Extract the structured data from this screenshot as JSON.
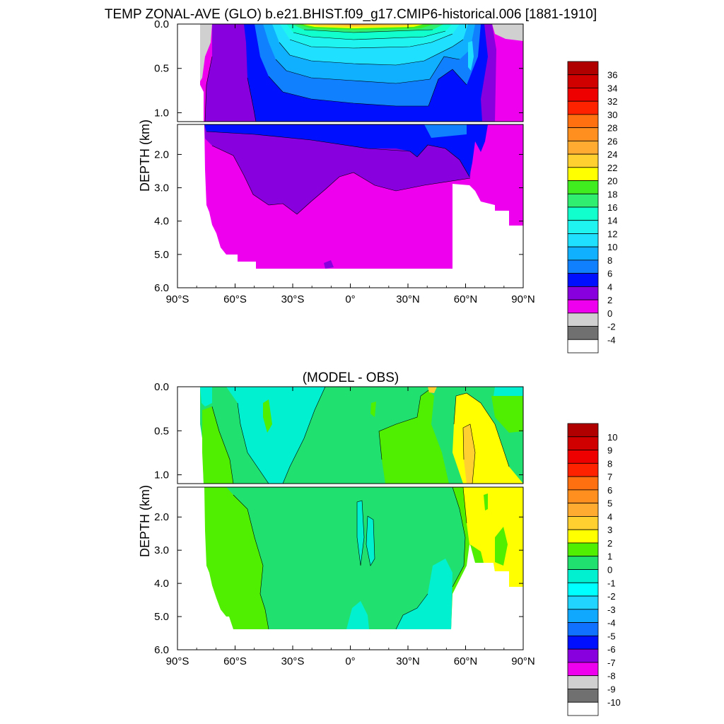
{
  "page": {
    "title": "TEMP ZONAL-AVE (GLO) b.e21.BHIST.f09_g17.CMIP6-historical.006 [1881-1910]"
  },
  "chart_data": [
    {
      "type": "heatmap",
      "title": "TEMP ZONAL-AVE (GLO) b.e21.BHIST.f09_g17.CMIP6-historical.006 [1881-1910]",
      "ylabel": "DEPTH (km)",
      "xlabel": "",
      "x_ticks": [
        "90°S",
        "60°S",
        "30°S",
        "0°",
        "30°N",
        "60°N",
        "90°N"
      ],
      "x_tick_values": [
        -90,
        -60,
        -30,
        0,
        30,
        60,
        90
      ],
      "y_ticks_upper": [
        "0.0",
        "0.5",
        "1.0"
      ],
      "y_ticks_upper_values": [
        0,
        0.5,
        1.0
      ],
      "y_ticks_lower": [
        "2.0",
        "3.0",
        "4.0",
        "5.0",
        "6.0"
      ],
      "y_ticks_lower_values": [
        2,
        3,
        4,
        5,
        6
      ],
      "xlim": [
        -90,
        90
      ],
      "ylim_upper": [
        0,
        1.1
      ],
      "ylim_lower": [
        1.1,
        6.0
      ],
      "colorbar_labels": [
        "36",
        "34",
        "32",
        "30",
        "28",
        "26",
        "24",
        "22",
        "20",
        "18",
        "16",
        "14",
        "12",
        "10",
        "8",
        "6",
        "4",
        "2",
        "0",
        "-2",
        "-4"
      ],
      "colorbar_levels": [
        36,
        34,
        32,
        30,
        28,
        26,
        24,
        22,
        20,
        18,
        16,
        14,
        12,
        10,
        8,
        6,
        4,
        2,
        0,
        -2,
        -4
      ],
      "colorbar_colors": [
        "#b00000",
        "#d00000",
        "#ee0000",
        "#ff2200",
        "#ff7010",
        "#ff9020",
        "#ffaa30",
        "#ffd030",
        "#ffff00",
        "#40ee20",
        "#30ee70",
        "#10ffcc",
        "#20f4f0",
        "#20e0ff",
        "#10b0ff",
        "#1080ff",
        "#0010ff",
        "#8800dd",
        "#ee00ee",
        "#d0d0d0",
        "#707070",
        "#ffffff"
      ]
    },
    {
      "type": "heatmap",
      "title": "(MODEL - OBS)",
      "ylabel": "DEPTH (km)",
      "xlabel": "",
      "x_ticks": [
        "90°S",
        "60°S",
        "30°S",
        "0°",
        "30°N",
        "60°N",
        "90°N"
      ],
      "x_tick_values": [
        -90,
        -60,
        -30,
        0,
        30,
        60,
        90
      ],
      "y_ticks_upper": [
        "0.0",
        "0.5",
        "1.0"
      ],
      "y_ticks_upper_values": [
        0,
        0.5,
        1.0
      ],
      "y_ticks_lower": [
        "2.0",
        "3.0",
        "4.0",
        "5.0",
        "6.0"
      ],
      "y_ticks_lower_values": [
        2,
        3,
        4,
        5,
        6
      ],
      "xlim": [
        -90,
        90
      ],
      "ylim_upper": [
        0,
        1.1
      ],
      "ylim_lower": [
        1.1,
        6.0
      ],
      "colorbar_labels": [
        "10",
        "9",
        "8",
        "7",
        "6",
        "5",
        "4",
        "3",
        "2",
        "1",
        "0",
        "-1",
        "-2",
        "-3",
        "-4",
        "-5",
        "-6",
        "-7",
        "-8",
        "-9",
        "-10"
      ],
      "colorbar_levels": [
        10,
        9,
        8,
        7,
        6,
        5,
        4,
        3,
        2,
        1,
        0,
        -1,
        -2,
        -3,
        -4,
        -5,
        -6,
        -7,
        -8,
        -9,
        -10
      ],
      "colorbar_colors": [
        "#b00000",
        "#d00000",
        "#ee0000",
        "#ff2200",
        "#ff7010",
        "#ff9020",
        "#ffaa30",
        "#ffd030",
        "#ffff00",
        "#50ee00",
        "#20e070",
        "#00f0d0",
        "#00ffff",
        "#20d4ff",
        "#10a8ff",
        "#1070ff",
        "#0010ff",
        "#8800dd",
        "#ee00ee",
        "#d0d0d0",
        "#707070",
        "#ffffff"
      ]
    }
  ]
}
